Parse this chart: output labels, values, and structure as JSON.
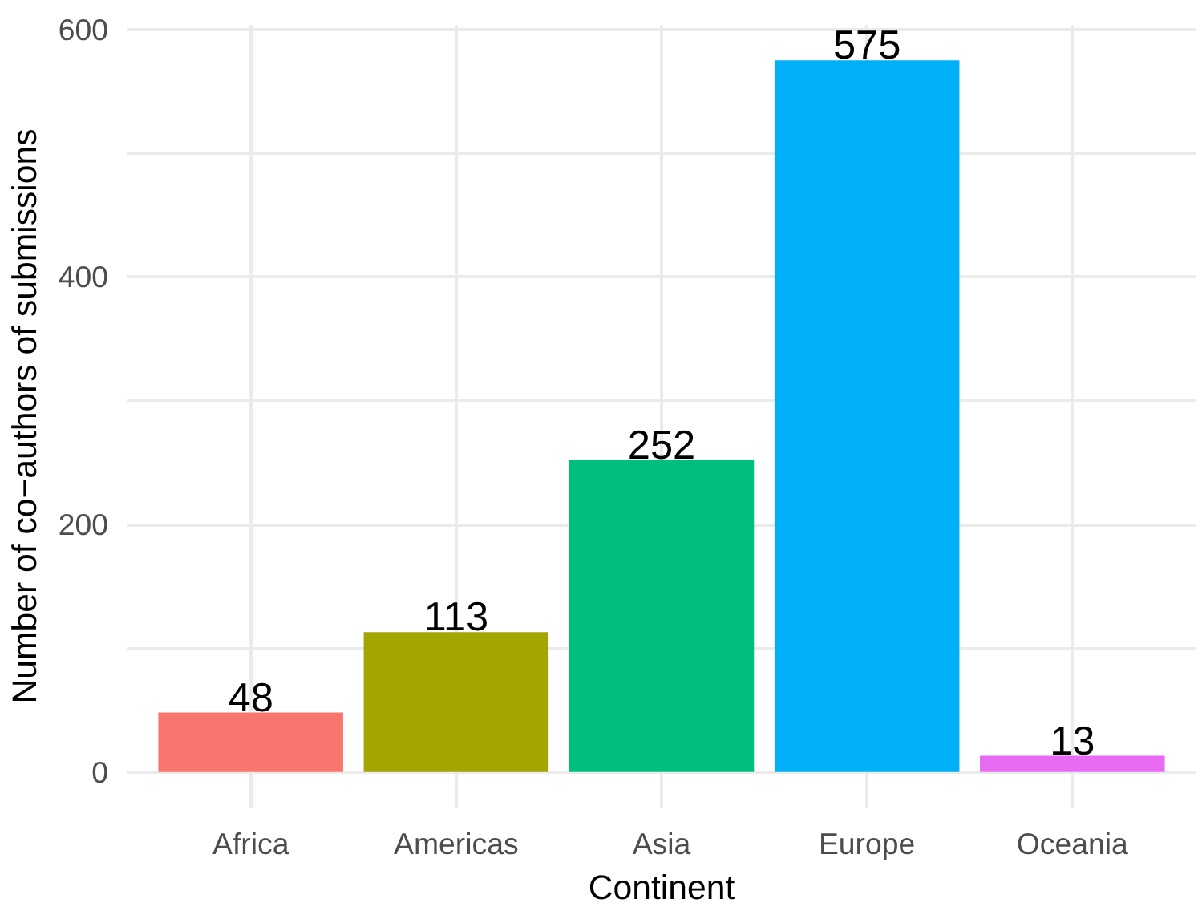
{
  "chart_data": {
    "type": "bar",
    "xlabel": "Continent",
    "ylabel": "Number of co−authors of submissions",
    "categories": [
      "Africa",
      "Americas",
      "Asia",
      "Europe",
      "Oceania"
    ],
    "values": [
      48,
      113,
      252,
      575,
      13
    ],
    "colors": [
      "#f8766d",
      "#a3a500",
      "#00bf7d",
      "#00b0f6",
      "#e76bf3"
    ],
    "ylim": [
      -28.75,
      603.75
    ],
    "yticks": [
      0,
      {
        "value": 100,
        "label": null
      },
      200,
      {
        "value": 300,
        "label": null
      },
      400,
      {
        "value": 500,
        "label": null
      },
      600
    ],
    "grid": true,
    "data_labels": true
  }
}
